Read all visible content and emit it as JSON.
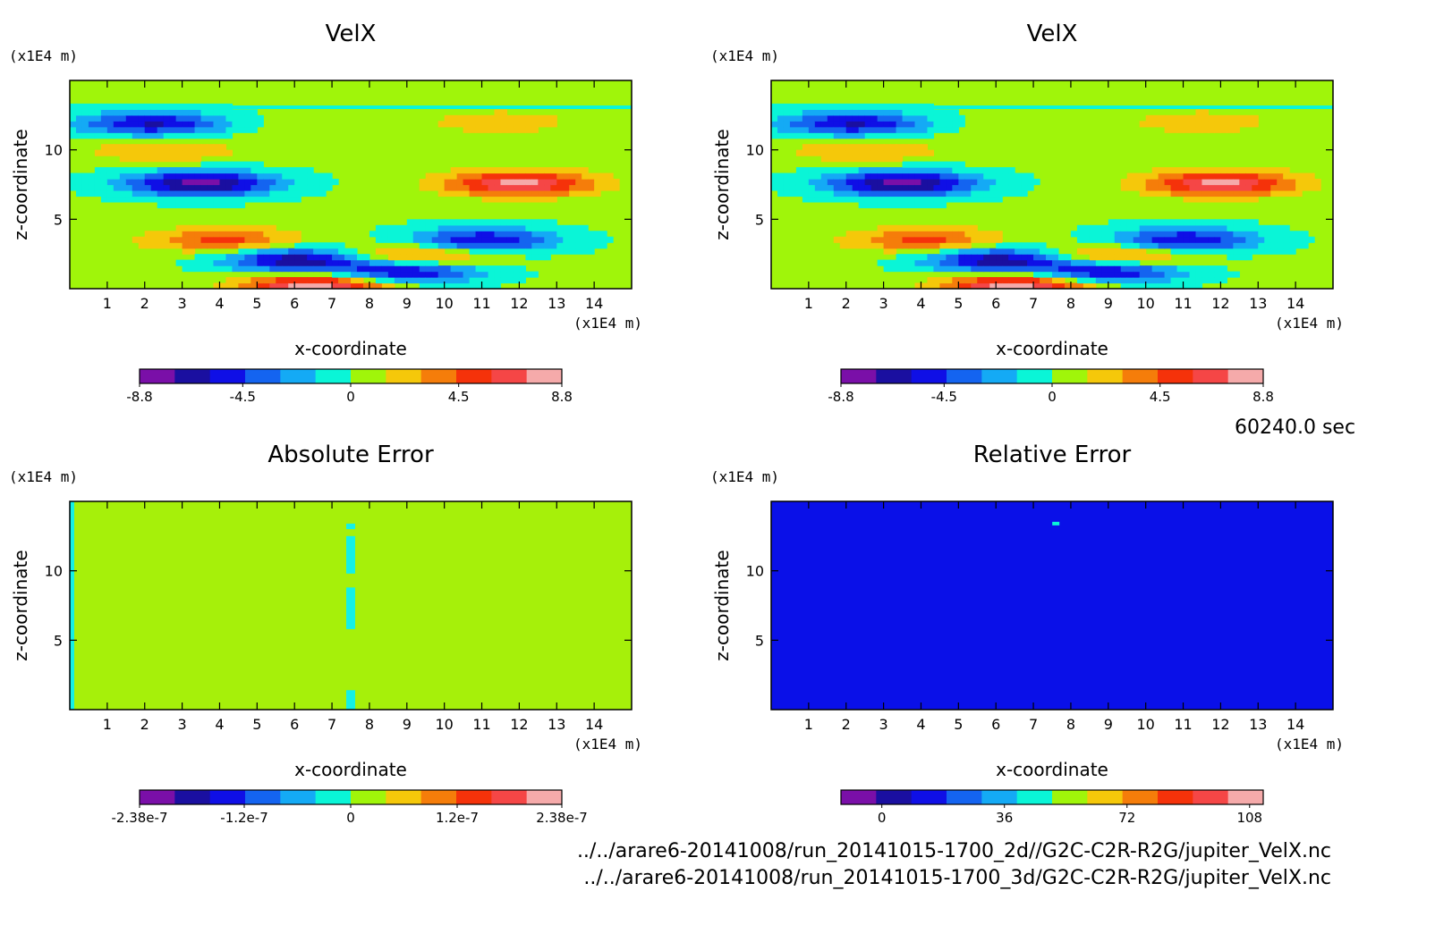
{
  "figure": {
    "time_label": "60240.0 sec",
    "file_paths": [
      "../../arare6-20141008/run_20141015-1700_2d//G2C-C2R-R2G/jupiter_VelX.nc",
      "../../arare6-20141008/run_20141015-1700_3d/G2C-C2R-R2G/jupiter_VelX.nc"
    ],
    "colors": {
      "palette": [
        "#7a0fa8",
        "#1a0fa0",
        "#0f0fe6",
        "#1464f0",
        "#14aaf5",
        "#0af5d7",
        "#a0f50a",
        "#f5c80a",
        "#f57d0a",
        "#f5320a",
        "#f54646",
        "#f5aaaa"
      ],
      "error_background": "#a6f00a",
      "relative_background": "#0a10e8",
      "error_stripe": "#14f0e6"
    }
  },
  "chart_data": [
    {
      "type": "heatmap",
      "title": "VelX",
      "xlabel": "x-coordinate",
      "ylabel": "z-coordinate",
      "x_unit": "(x1E4 m)",
      "y_unit": "(x1E4 m)",
      "xlim": [
        0,
        15
      ],
      "ylim": [
        0,
        15
      ],
      "xticks": [
        1,
        2,
        3,
        4,
        5,
        6,
        7,
        8,
        9,
        10,
        11,
        12,
        13,
        14
      ],
      "yticks": [
        5,
        10
      ],
      "colorbar": {
        "min": -8.8,
        "max": 8.8,
        "tick_labels": [
          "-8.8",
          "-4.5",
          "0",
          "4.5",
          "8.8"
        ],
        "tick_values": [
          -8.8,
          -4.5,
          0,
          4.5,
          8.8
        ]
      },
      "features": [
        {
          "x": 2.2,
          "z": 11.9,
          "value": -6
        },
        {
          "x": 2.5,
          "z": 10.0,
          "value": 3
        },
        {
          "x": 3.5,
          "z": 7.6,
          "value": -8
        },
        {
          "x": 6.5,
          "z": 11.5,
          "value": 1
        },
        {
          "x": 4.1,
          "z": 3.5,
          "value": 5
        },
        {
          "x": 6.1,
          "z": 2.1,
          "value": -7
        },
        {
          "x": 6.6,
          "z": 0.2,
          "value": 8.5
        },
        {
          "x": 9.0,
          "z": 1.3,
          "value": -7
        },
        {
          "x": 9.2,
          "z": 2.3,
          "value": 6
        },
        {
          "x": 11.0,
          "z": 3.5,
          "value": -6
        },
        {
          "x": 12.0,
          "z": 7.6,
          "value": 7.8
        },
        {
          "x": 11.5,
          "z": 12.0,
          "value": 2.5
        }
      ]
    },
    {
      "type": "heatmap",
      "title": "VelX",
      "xlabel": "x-coordinate",
      "ylabel": "z-coordinate",
      "x_unit": "(x1E4 m)",
      "y_unit": "(x1E4 m)",
      "xlim": [
        0,
        15
      ],
      "ylim": [
        0,
        15
      ],
      "xticks": [
        1,
        2,
        3,
        4,
        5,
        6,
        7,
        8,
        9,
        10,
        11,
        12,
        13,
        14
      ],
      "yticks": [
        5,
        10
      ],
      "colorbar": {
        "min": -8.8,
        "max": 8.8,
        "tick_labels": [
          "-8.8",
          "-4.5",
          "0",
          "4.5",
          "8.8"
        ],
        "tick_values": [
          -8.8,
          -4.5,
          0,
          4.5,
          8.8
        ]
      },
      "features": [
        {
          "x": 2.2,
          "z": 11.9,
          "value": -6
        },
        {
          "x": 2.5,
          "z": 10.0,
          "value": 3
        },
        {
          "x": 3.5,
          "z": 7.6,
          "value": -8
        },
        {
          "x": 6.5,
          "z": 11.5,
          "value": 1
        },
        {
          "x": 4.1,
          "z": 3.5,
          "value": 5
        },
        {
          "x": 6.1,
          "z": 2.1,
          "value": -7
        },
        {
          "x": 6.6,
          "z": 0.2,
          "value": 8.5
        },
        {
          "x": 9.0,
          "z": 1.3,
          "value": -7
        },
        {
          "x": 9.2,
          "z": 2.3,
          "value": 6
        },
        {
          "x": 11.0,
          "z": 3.5,
          "value": -6
        },
        {
          "x": 12.0,
          "z": 7.6,
          "value": 7.8
        },
        {
          "x": 11.5,
          "z": 12.0,
          "value": 2.5
        }
      ]
    },
    {
      "type": "heatmap",
      "title": "Absolute Error",
      "xlabel": "x-coordinate",
      "ylabel": "z-coordinate",
      "x_unit": "(x1E4 m)",
      "y_unit": "(x1E4 m)",
      "xlim": [
        0,
        15
      ],
      "ylim": [
        0,
        15
      ],
      "xticks": [
        1,
        2,
        3,
        4,
        5,
        6,
        7,
        8,
        9,
        10,
        11,
        12,
        13,
        14
      ],
      "yticks": [
        5,
        10
      ],
      "colorbar": {
        "min": -2.38e-07,
        "max": 2.38e-07,
        "tick_labels": [
          "-2.38e-7",
          "-1.2e-7",
          "0",
          "1.2e-7",
          "2.38e-7"
        ],
        "tick_values": [
          -2.38e-07,
          -1.2e-07,
          0,
          1.2e-07,
          2.38e-07
        ]
      },
      "background_value": 0,
      "column_anomaly": {
        "x": 7.5,
        "z_ranges": [
          [
            0,
            1.4
          ],
          [
            5.8,
            8.8
          ],
          [
            9.8,
            12.5
          ],
          [
            13.0,
            13.4
          ]
        ]
      }
    },
    {
      "type": "heatmap",
      "title": "Relative Error",
      "xlabel": "x-coordinate",
      "ylabel": "z-coordinate",
      "x_unit": "(x1E4 m)",
      "y_unit": "(x1E4 m)",
      "xlim": [
        0,
        15
      ],
      "ylim": [
        0,
        15
      ],
      "xticks": [
        1,
        2,
        3,
        4,
        5,
        6,
        7,
        8,
        9,
        10,
        11,
        12,
        13,
        14
      ],
      "yticks": [
        5,
        10
      ],
      "colorbar": {
        "min": -12,
        "max": 112,
        "tick_labels": [
          "0",
          "36",
          "72",
          "108"
        ],
        "tick_values": [
          0,
          36,
          72,
          108
        ]
      },
      "background_value": 0,
      "hotspot": {
        "x": 7.6,
        "z": 13.4,
        "value": 40
      }
    }
  ]
}
